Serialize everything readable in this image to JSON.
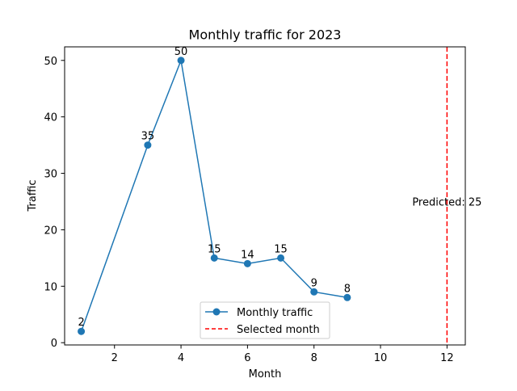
{
  "chart_data": {
    "type": "line",
    "title": "Monthly traffic for 2023",
    "xlabel": "Month",
    "ylabel": "Traffic",
    "xlim": [
      0.5,
      12.55
    ],
    "ylim": [
      -0.4,
      52.4
    ],
    "x_ticks": [
      2,
      4,
      6,
      8,
      10,
      12
    ],
    "y_ticks": [
      0,
      10,
      20,
      30,
      40,
      50
    ],
    "grid": false,
    "legend_position": "lower-center",
    "series": [
      {
        "name": "Monthly traffic",
        "color": "#1f77b4",
        "marker": "circle",
        "x": [
          1,
          3,
          4,
          5,
          6,
          7,
          8,
          9
        ],
        "values": [
          2,
          35,
          50,
          15,
          14,
          15,
          9,
          8
        ],
        "data_labels": [
          "2",
          "35",
          "50",
          "15",
          "14",
          "15",
          "9",
          "8"
        ]
      }
    ],
    "reference_line": {
      "name": "Selected month",
      "orientation": "vertical",
      "x": 12,
      "color": "#ff0000",
      "style": "dashed"
    },
    "annotation": {
      "text": "Predicted: 25",
      "x": 12,
      "y": 25
    }
  }
}
